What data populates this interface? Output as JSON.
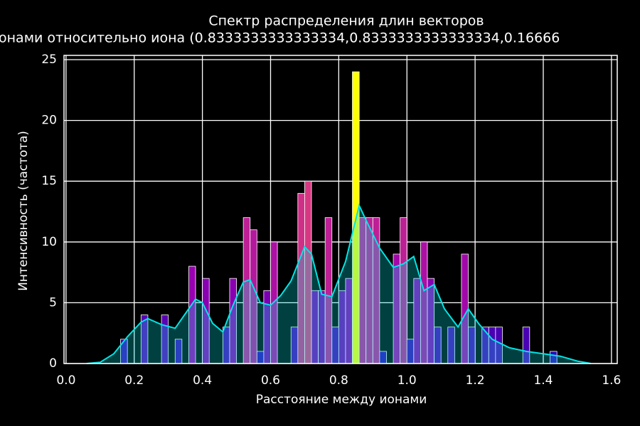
{
  "chart_data": {
    "type": "histogram",
    "title": "Спектр распределения длин векторов",
    "subtitle": "онами относительно иона (0.8333333333333334,0.8333333333333334,0.16666",
    "x_label": "Расстояние между ионами",
    "y_label": "Интенсивность (частота)",
    "bins": [
      0.16,
      0.18,
      0.2,
      0.22,
      0.24,
      0.26,
      0.28,
      0.3,
      0.32,
      0.34,
      0.36,
      0.38,
      0.4,
      0.42,
      0.44,
      0.46,
      0.48,
      0.5,
      0.52,
      0.54,
      0.56,
      0.58,
      0.6,
      0.62,
      0.64,
      0.66,
      0.68,
      0.7,
      0.72,
      0.74,
      0.76,
      0.78,
      0.8,
      0.82,
      0.84,
      0.86,
      0.88,
      0.9,
      0.92,
      0.94,
      0.96,
      0.98,
      1.0,
      1.02,
      1.04,
      1.06,
      1.08,
      1.1,
      1.12,
      1.14,
      1.16,
      1.18,
      1.2,
      1.22,
      1.24,
      1.26,
      1.28,
      1.3,
      1.32,
      1.34,
      1.36,
      1.38,
      1.4,
      1.42,
      1.44,
      1.46
    ],
    "values": [
      2,
      0,
      0,
      4,
      0,
      0,
      4,
      0,
      2,
      0,
      8,
      0,
      7,
      0,
      0,
      3,
      7,
      0,
      12,
      11,
      1,
      6,
      10,
      0,
      0,
      3,
      14,
      15,
      6,
      6,
      12,
      3,
      6,
      7,
      24,
      12,
      12,
      12,
      1,
      0,
      9,
      12,
      2,
      7,
      10,
      7,
      3,
      0,
      3,
      0,
      9,
      3,
      0,
      3,
      3,
      3,
      0,
      0,
      0,
      3,
      0,
      0,
      0,
      1,
      0
    ],
    "colormap": [
      "#1a00b4",
      "#9900b0",
      "#e0407a",
      "#ffff00"
    ],
    "kde": {
      "color": "#00e5e5",
      "x": [
        0.06,
        0.1,
        0.14,
        0.18,
        0.22,
        0.24,
        0.28,
        0.32,
        0.36,
        0.38,
        0.4,
        0.43,
        0.46,
        0.49,
        0.52,
        0.54,
        0.57,
        0.6,
        0.63,
        0.66,
        0.7,
        0.72,
        0.75,
        0.78,
        0.82,
        0.86,
        0.88,
        0.92,
        0.96,
        0.99,
        1.02,
        1.05,
        1.08,
        1.11,
        1.15,
        1.18,
        1.21,
        1.25,
        1.3,
        1.35,
        1.4,
        1.45,
        1.5,
        1.54
      ],
      "values": [
        0,
        0.1,
        0.8,
        2.2,
        3.4,
        3.7,
        3.2,
        2.9,
        4.5,
        5.3,
        5.0,
        3.3,
        2.6,
        4.8,
        6.7,
        6.9,
        5.0,
        4.8,
        5.6,
        6.8,
        9.6,
        9.0,
        5.7,
        5.5,
        8.4,
        13,
        11.8,
        9.5,
        7.9,
        8.2,
        8.8,
        6.0,
        6.5,
        4.5,
        3.0,
        4.5,
        3.3,
        2.0,
        1.3,
        1.0,
        0.8,
        0.6,
        0.2,
        0
      ]
    },
    "xlim": [
      -0.006,
      1.617
    ],
    "ylim": [
      0,
      25.35
    ],
    "xticks": [
      {
        "value": 0,
        "label": "0.0"
      },
      {
        "value": 0.2,
        "label": "0.2"
      },
      {
        "value": 0.4,
        "label": "0.4"
      },
      {
        "value": 0.6,
        "label": "0.6"
      },
      {
        "value": 0.8,
        "label": "0.8"
      },
      {
        "value": 1,
        "label": "1.0"
      },
      {
        "value": 1.2,
        "label": "1.2"
      },
      {
        "value": 1.4,
        "label": "1.4"
      },
      {
        "value": 1.6,
        "label": "1.6"
      }
    ],
    "yticks": [
      0,
      5,
      10,
      15,
      20,
      25
    ],
    "grid": true
  }
}
